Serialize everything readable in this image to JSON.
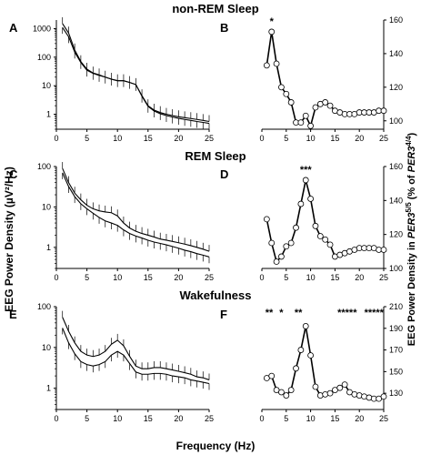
{
  "titles": {
    "top": "non-REM Sleep",
    "middle": "REM Sleep",
    "bottom": "Wakefulness"
  },
  "axes": {
    "xlabel": "Frequency (Hz)",
    "ylabel_left": "EEG Power Density (µV²/Hz)",
    "ylabel_right_prefix": "EEG Power Density  in ",
    "ylabel_right_gene1": "PER3",
    "ylabel_right_sup1": "5/5",
    "ylabel_right_mid": " (% of ",
    "ylabel_right_gene2": "PER3",
    "ylabel_right_sup2": "4/4",
    "ylabel_right_end": ")"
  },
  "chart_data": [
    {
      "panel": "A",
      "type": "line",
      "yscale": "log",
      "xlim": [
        0,
        25
      ],
      "xticks": [
        0,
        5,
        10,
        15,
        20,
        25
      ],
      "ylim": [
        0.3,
        2000
      ],
      "yticks": [
        1,
        10,
        100,
        1000
      ],
      "ytick_labels": [
        "1",
        "10",
        "100",
        "1000"
      ],
      "x": [
        1,
        2,
        3,
        4,
        5,
        6,
        7,
        8,
        9,
        10,
        11,
        12,
        13,
        14,
        15,
        16,
        17,
        18,
        19,
        20,
        21,
        22,
        23,
        24,
        25
      ],
      "series": [
        {
          "values": [
            1500,
            700,
            180,
            70,
            38,
            28,
            24,
            20,
            17,
            15,
            15,
            13,
            11,
            4.5,
            2.0,
            1.4,
            1.15,
            1.0,
            0.9,
            0.82,
            0.76,
            0.71,
            0.66,
            0.61,
            0.56
          ]
        },
        {
          "values": [
            1100,
            520,
            150,
            65,
            35,
            27,
            23,
            20,
            17,
            15,
            15,
            13,
            11,
            4.3,
            1.9,
            1.3,
            1.05,
            0.9,
            0.8,
            0.72,
            0.66,
            0.61,
            0.56,
            0.52,
            0.48
          ]
        }
      ]
    },
    {
      "panel": "B",
      "type": "line",
      "xlim": [
        0,
        25
      ],
      "xticks": [
        0,
        5,
        10,
        15,
        20,
        25
      ],
      "ylim": [
        95,
        160
      ],
      "yticks": [
        100,
        120,
        140,
        160
      ],
      "ytick_labels": [
        "100",
        "120",
        "140",
        "160"
      ],
      "x": [
        1,
        2,
        3,
        4,
        5,
        6,
        7,
        8,
        9,
        10,
        11,
        12,
        13,
        14,
        15,
        16,
        17,
        18,
        19,
        20,
        21,
        22,
        23,
        24,
        25
      ],
      "values": [
        133,
        153,
        134,
        120,
        116,
        111,
        99,
        99,
        103,
        97,
        108,
        110,
        111,
        109,
        106,
        105,
        104,
        104,
        104,
        105,
        105,
        105,
        105,
        106,
        106
      ],
      "annotations": [
        {
          "x": 2,
          "text": "*"
        }
      ]
    },
    {
      "panel": "C",
      "type": "line",
      "yscale": "log",
      "xlim": [
        0,
        25
      ],
      "xticks": [
        0,
        5,
        10,
        15,
        20,
        25
      ],
      "ylim": [
        0.3,
        100
      ],
      "yticks": [
        1,
        10,
        100
      ],
      "ytick_labels": [
        "1",
        "10",
        "100"
      ],
      "x": [
        1,
        2,
        3,
        4,
        5,
        6,
        7,
        8,
        9,
        10,
        11,
        12,
        13,
        14,
        15,
        16,
        17,
        18,
        19,
        20,
        21,
        22,
        23,
        24,
        25
      ],
      "series": [
        {
          "values": [
            90,
            40,
            22,
            15,
            11,
            9.0,
            8.0,
            7.5,
            7.2,
            6.0,
            4.0,
            3.0,
            2.5,
            2.2,
            2.0,
            1.8,
            1.6,
            1.5,
            1.4,
            1.3,
            1.2,
            1.1,
            1.0,
            0.9,
            0.8
          ]
        },
        {
          "values": [
            70,
            32,
            18,
            12,
            9.0,
            7.0,
            5.5,
            4.5,
            4.0,
            3.5,
            2.7,
            2.2,
            1.9,
            1.7,
            1.5,
            1.35,
            1.25,
            1.15,
            1.05,
            0.95,
            0.85,
            0.78,
            0.7,
            0.64,
            0.58
          ]
        }
      ]
    },
    {
      "panel": "D",
      "type": "line",
      "xlim": [
        0,
        25
      ],
      "xticks": [
        0,
        5,
        10,
        15,
        20,
        25
      ],
      "ylim": [
        100,
        160
      ],
      "yticks": [
        100,
        120,
        140,
        160
      ],
      "ytick_labels": [
        "100",
        "120",
        "140",
        "160"
      ],
      "x": [
        1,
        2,
        3,
        4,
        5,
        6,
        7,
        8,
        9,
        10,
        11,
        12,
        13,
        14,
        15,
        16,
        17,
        18,
        19,
        20,
        21,
        22,
        23,
        24,
        25
      ],
      "values": [
        129,
        115,
        104,
        107,
        113,
        115,
        124,
        138,
        152,
        141,
        125,
        119,
        117,
        114,
        107,
        108,
        109,
        110,
        111,
        112,
        112,
        112,
        112,
        111,
        111
      ],
      "annotations": [
        {
          "x": 9,
          "text": "***"
        }
      ]
    },
    {
      "panel": "E",
      "type": "line",
      "yscale": "log",
      "xlim": [
        0,
        25
      ],
      "xticks": [
        0,
        5,
        10,
        15,
        20,
        25
      ],
      "ylim": [
        0.3,
        100
      ],
      "yticks": [
        1,
        10,
        100
      ],
      "ytick_labels": [
        "1",
        "10",
        "100"
      ],
      "x": [
        1,
        2,
        3,
        4,
        5,
        6,
        7,
        8,
        9,
        10,
        11,
        12,
        13,
        14,
        15,
        16,
        17,
        18,
        19,
        20,
        21,
        22,
        23,
        24,
        25
      ],
      "series": [
        {
          "values": [
            55,
            25,
            13,
            8,
            6.5,
            6,
            6.5,
            8,
            12,
            15,
            11,
            6,
            3.5,
            3,
            3,
            3.2,
            3.2,
            3,
            2.8,
            2.6,
            2.4,
            2.2,
            1.9,
            1.8,
            1.6
          ]
        },
        {
          "values": [
            30,
            13,
            7,
            4.5,
            3.8,
            3.5,
            3.8,
            4.5,
            6.5,
            8,
            6.5,
            4,
            2.5,
            2.2,
            2.2,
            2.3,
            2.3,
            2.2,
            2.0,
            1.9,
            1.8,
            1.6,
            1.5,
            1.4,
            1.3
          ]
        }
      ]
    },
    {
      "panel": "F",
      "type": "line",
      "xlim": [
        0,
        25
      ],
      "xticks": [
        0,
        5,
        10,
        15,
        20,
        25
      ],
      "ylim": [
        115,
        210
      ],
      "yticks": [
        130,
        150,
        170,
        190,
        210
      ],
      "ytick_labels": [
        "130",
        "150",
        "170",
        "190",
        "210"
      ],
      "x": [
        1,
        2,
        3,
        4,
        5,
        6,
        7,
        8,
        9,
        10,
        11,
        12,
        13,
        14,
        15,
        16,
        17,
        18,
        19,
        20,
        21,
        22,
        23,
        24,
        25
      ],
      "values": [
        144,
        146,
        133,
        131,
        128,
        133,
        153,
        170,
        192,
        165,
        136,
        128,
        129,
        130,
        133,
        135,
        138,
        131,
        129,
        128,
        127,
        126,
        125,
        125,
        127
      ],
      "annotations": [
        {
          "x": 1.5,
          "text": "**"
        },
        {
          "x": 4,
          "text": "*"
        },
        {
          "x": 7.5,
          "text": "**"
        },
        {
          "x": 17.5,
          "text": "*****"
        },
        {
          "x": 23,
          "text": "*****"
        }
      ]
    }
  ]
}
